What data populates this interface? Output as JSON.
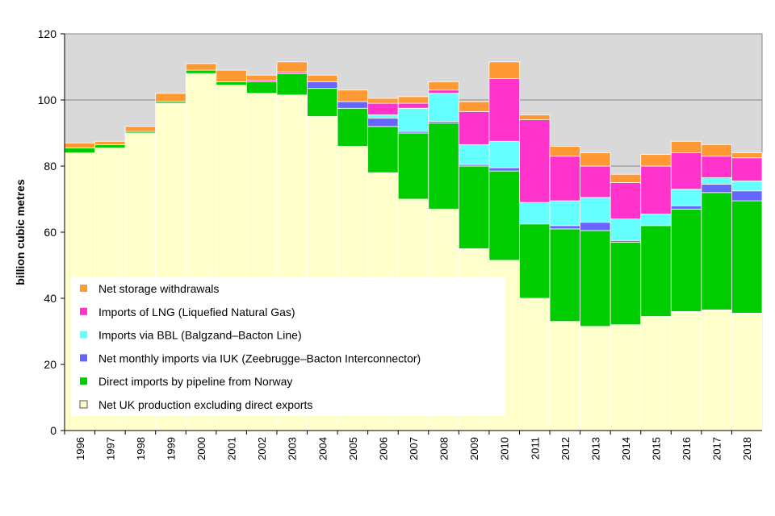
{
  "chart_data": {
    "type": "bar",
    "stacked": true,
    "title": "",
    "xlabel": "",
    "ylabel": "billion cubic metres",
    "ylim": [
      0,
      120
    ],
    "yticks": [
      0,
      20,
      40,
      60,
      80,
      100,
      120
    ],
    "grid": true,
    "legend_position": "bottom-left",
    "categories": [
      "1996",
      "1997",
      "1998",
      "1999",
      "2000",
      "2001",
      "2002",
      "2003",
      "2004",
      "2005",
      "2006",
      "2007",
      "2008",
      "2009",
      "2010",
      "2011",
      "2012",
      "2013",
      "2014",
      "2015",
      "2016",
      "2017",
      "2018"
    ],
    "series": [
      {
        "name": "Net UK production excluding direct exports",
        "color": "#ffffcc",
        "values": [
          84,
          85.5,
          90,
          99,
          108,
          104.5,
          102,
          101.5,
          95,
          86,
          78,
          70,
          67,
          55,
          51.5,
          40,
          33,
          31.5,
          32,
          34.5,
          36,
          36.5,
          35.5
        ]
      },
      {
        "name": "Direct imports by pipeline from Norway",
        "color": "#00cc00",
        "values": [
          1.5,
          1,
          0.5,
          0.5,
          1,
          1,
          3.5,
          6.5,
          8.5,
          11.5,
          14,
          20,
          26,
          25,
          27,
          22.5,
          28,
          29,
          25,
          27.5,
          31,
          35.5,
          34
        ]
      },
      {
        "name": "Net monthly imports via IUK (Zeebrugge–Bacton Interconnector)",
        "color": "#6666ff",
        "values": [
          0,
          0,
          0,
          0,
          0,
          0,
          0,
          0,
          2,
          2,
          2.5,
          0.5,
          0.5,
          0.5,
          1,
          0,
          1,
          2.5,
          0.5,
          0,
          1,
          2.5,
          3
        ]
      },
      {
        "name": "Imports via BBL (Balgzand–Bacton Line)",
        "color": "#66ffff",
        "values": [
          0,
          0,
          0,
          0,
          0,
          0,
          0,
          0,
          0,
          0,
          1,
          7,
          8.5,
          6,
          8,
          6.5,
          7.5,
          7.5,
          6.5,
          3.5,
          5,
          2,
          3
        ]
      },
      {
        "name": "Imports of LNG (Liquefied Natural Gas)",
        "color": "#ff33cc",
        "values": [
          0,
          0,
          0,
          0,
          0,
          0,
          0.5,
          0.5,
          0,
          0,
          3.5,
          1.5,
          1,
          10,
          19,
          25,
          13.5,
          9.5,
          11,
          14.5,
          11,
          6.5,
          7
        ]
      },
      {
        "name": "Net storage withdrawals",
        "color": "#ff9933",
        "values": [
          1.5,
          1,
          1.5,
          2.5,
          2,
          3.5,
          1.5,
          3,
          2,
          3.5,
          1.5,
          2,
          2.5,
          3,
          5,
          1.5,
          3,
          4,
          2.5,
          3.5,
          3.5,
          3.5,
          1.5
        ]
      }
    ]
  },
  "legend": {
    "order": [
      5,
      4,
      3,
      2,
      1,
      0
    ]
  }
}
